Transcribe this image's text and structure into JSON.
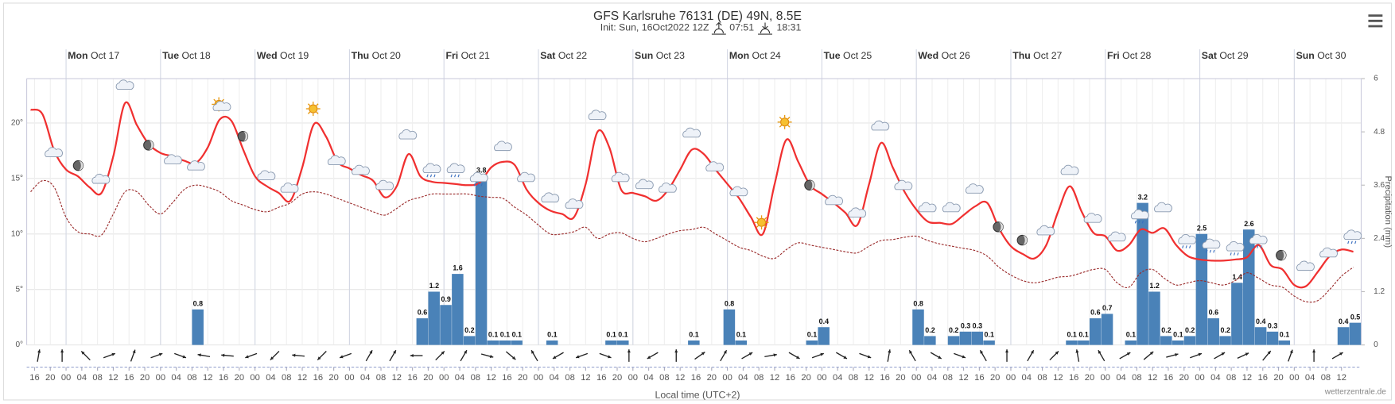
{
  "chart_data": {
    "type": "line",
    "title": "GFS Karlsruhe 76131 (DE) 49N, 8.5E",
    "subtitle": "Init: Sun, 16Oct2022 12Z",
    "sunrise": "07:51",
    "sunset": "18:31",
    "xlabel": "Local time (UTC+2)",
    "y2label": "Precipitation (mm)",
    "credit": "wetterzentrale.de",
    "grid": true,
    "xlim": [
      14,
      353
    ],
    "xticks": [
      {
        "value": 16,
        "label": "16"
      },
      {
        "value": 20,
        "label": "20"
      },
      {
        "value": 24,
        "label": "00"
      },
      {
        "value": 28,
        "label": "04"
      },
      {
        "value": 32,
        "label": "08"
      },
      {
        "value": 36,
        "label": "12"
      },
      {
        "value": 40,
        "label": "16"
      },
      {
        "value": 44,
        "label": "20"
      },
      {
        "value": 48,
        "label": "00"
      },
      {
        "value": 52,
        "label": "04"
      },
      {
        "value": 56,
        "label": "08"
      },
      {
        "value": 60,
        "label": "12"
      },
      {
        "value": 64,
        "label": "16"
      },
      {
        "value": 68,
        "label": "20"
      },
      {
        "value": 72,
        "label": "00"
      },
      {
        "value": 76,
        "label": "04"
      },
      {
        "value": 80,
        "label": "08"
      },
      {
        "value": 84,
        "label": "12"
      },
      {
        "value": 88,
        "label": "16"
      },
      {
        "value": 92,
        "label": "20"
      },
      {
        "value": 96,
        "label": "00"
      },
      {
        "value": 100,
        "label": "04"
      },
      {
        "value": 104,
        "label": "08"
      },
      {
        "value": 108,
        "label": "12"
      },
      {
        "value": 112,
        "label": "16"
      },
      {
        "value": 116,
        "label": "20"
      },
      {
        "value": 120,
        "label": "00"
      },
      {
        "value": 124,
        "label": "04"
      },
      {
        "value": 128,
        "label": "08"
      },
      {
        "value": 132,
        "label": "12"
      },
      {
        "value": 136,
        "label": "16"
      },
      {
        "value": 140,
        "label": "20"
      },
      {
        "value": 144,
        "label": "00"
      },
      {
        "value": 148,
        "label": "04"
      },
      {
        "value": 152,
        "label": "08"
      },
      {
        "value": 156,
        "label": "12"
      },
      {
        "value": 160,
        "label": "16"
      },
      {
        "value": 164,
        "label": "20"
      },
      {
        "value": 168,
        "label": "00"
      },
      {
        "value": 172,
        "label": "04"
      },
      {
        "value": 176,
        "label": "08"
      },
      {
        "value": 180,
        "label": "12"
      },
      {
        "value": 184,
        "label": "16"
      },
      {
        "value": 188,
        "label": "20"
      },
      {
        "value": 192,
        "label": "00"
      },
      {
        "value": 196,
        "label": "04"
      },
      {
        "value": 200,
        "label": "08"
      },
      {
        "value": 204,
        "label": "12"
      },
      {
        "value": 208,
        "label": "16"
      },
      {
        "value": 212,
        "label": "20"
      },
      {
        "value": 216,
        "label": "00"
      },
      {
        "value": 220,
        "label": "04"
      },
      {
        "value": 224,
        "label": "08"
      },
      {
        "value": 228,
        "label": "12"
      },
      {
        "value": 232,
        "label": "16"
      },
      {
        "value": 236,
        "label": "20"
      },
      {
        "value": 240,
        "label": "00"
      },
      {
        "value": 244,
        "label": "04"
      },
      {
        "value": 248,
        "label": "08"
      },
      {
        "value": 252,
        "label": "12"
      },
      {
        "value": 256,
        "label": "16"
      },
      {
        "value": 260,
        "label": "20"
      },
      {
        "value": 264,
        "label": "00"
      },
      {
        "value": 268,
        "label": "04"
      },
      {
        "value": 272,
        "label": "08"
      },
      {
        "value": 276,
        "label": "12"
      },
      {
        "value": 280,
        "label": "16"
      },
      {
        "value": 284,
        "label": "20"
      },
      {
        "value": 288,
        "label": "00"
      },
      {
        "value": 292,
        "label": "04"
      },
      {
        "value": 296,
        "label": "08"
      },
      {
        "value": 300,
        "label": "12"
      },
      {
        "value": 304,
        "label": "16"
      },
      {
        "value": 308,
        "label": "20"
      },
      {
        "value": 312,
        "label": "00"
      },
      {
        "value": 316,
        "label": "04"
      },
      {
        "value": 320,
        "label": "08"
      },
      {
        "value": 324,
        "label": "12"
      },
      {
        "value": 328,
        "label": "16"
      },
      {
        "value": 332,
        "label": "20"
      },
      {
        "value": 336,
        "label": "00"
      },
      {
        "value": 340,
        "label": "04"
      },
      {
        "value": 344,
        "label": "08"
      },
      {
        "value": 348,
        "label": "12"
      }
    ],
    "day_ticks": [
      {
        "value": 24,
        "weekday": "Mon",
        "date": "Oct 17"
      },
      {
        "value": 48,
        "weekday": "Tue",
        "date": "Oct 18"
      },
      {
        "value": 72,
        "weekday": "Wed",
        "date": "Oct 19"
      },
      {
        "value": 96,
        "weekday": "Thu",
        "date": "Oct 20"
      },
      {
        "value": 120,
        "weekday": "Fri",
        "date": "Oct 21"
      },
      {
        "value": 144,
        "weekday": "Sat",
        "date": "Oct 22"
      },
      {
        "value": 168,
        "weekday": "Sun",
        "date": "Oct 23"
      },
      {
        "value": 192,
        "weekday": "Mon",
        "date": "Oct 24"
      },
      {
        "value": 216,
        "weekday": "Tue",
        "date": "Oct 25"
      },
      {
        "value": 240,
        "weekday": "Wed",
        "date": "Oct 26"
      },
      {
        "value": 264,
        "weekday": "Thu",
        "date": "Oct 27"
      },
      {
        "value": 288,
        "weekday": "Fri",
        "date": "Oct 28"
      },
      {
        "value": 312,
        "weekday": "Sat",
        "date": "Oct 29"
      },
      {
        "value": 336,
        "weekday": "Sun",
        "date": "Oct 30"
      }
    ],
    "ylim": [
      0,
      24
    ],
    "yticks": [
      {
        "value": 0,
        "label": "0°"
      },
      {
        "value": 5,
        "label": "5°"
      },
      {
        "value": 10,
        "label": "10°"
      },
      {
        "value": 15,
        "label": "15°"
      },
      {
        "value": 20,
        "label": "20°"
      }
    ],
    "y2lim": [
      0,
      6
    ],
    "y2ticks": [
      0,
      1.2,
      2.4,
      3.6,
      4.8,
      6
    ],
    "x": [
      15,
      18,
      21,
      24,
      27,
      30,
      33,
      36,
      39,
      42,
      45,
      48,
      51,
      54,
      57,
      60,
      63,
      66,
      69,
      72,
      75,
      78,
      81,
      84,
      87,
      90,
      93,
      96,
      99,
      102,
      105,
      108,
      111,
      114,
      117,
      120,
      123,
      126,
      129,
      132,
      135,
      138,
      141,
      144,
      147,
      150,
      153,
      156,
      159,
      162,
      165,
      168,
      171,
      174,
      177,
      180,
      183,
      186,
      189,
      192,
      195,
      198,
      201,
      204,
      207,
      210,
      213,
      216,
      219,
      222,
      225,
      228,
      231,
      234,
      237,
      240,
      243,
      246,
      249,
      252,
      255,
      258,
      261,
      264,
      267,
      270,
      273,
      276,
      279,
      282,
      285,
      288,
      291,
      294,
      297,
      300,
      303,
      306,
      309,
      312,
      315,
      318,
      321,
      324,
      327,
      330,
      333,
      336,
      339,
      342,
      345,
      348,
      351
    ],
    "series": [
      {
        "type": "line",
        "color": "#f03030",
        "dashed": false,
        "values": [
          21.2,
          20.8,
          17.5,
          15.8,
          15.2,
          14.2,
          13.7,
          17,
          21.8,
          19.8,
          18.1,
          17.3,
          17,
          16.6,
          16.4,
          17.8,
          20.3,
          20.2,
          17.6,
          15.2,
          14.3,
          13.7,
          13,
          16,
          19.9,
          18.8,
          16.5,
          15.9,
          15.3,
          14.8,
          13.3,
          14.3,
          17.2,
          15.2,
          14.7,
          14.6,
          14.5,
          14.4,
          14.6,
          16,
          16.5,
          16.2,
          14,
          12.8,
          12.1,
          11.8,
          11.5,
          14.5,
          19.2,
          17.8,
          14,
          13.7,
          13.4,
          13,
          14,
          15.8,
          17.6,
          17.2,
          15.8,
          14.5,
          13.2,
          11.5,
          10,
          14.5,
          18.5,
          16.5,
          14.4,
          13.6,
          12.8,
          11.9,
          10.8,
          14.5,
          18.2,
          16,
          13.8,
          12.2,
          11.1,
          11,
          10.9,
          11.7,
          12.5,
          12.8,
          10.5,
          8.9,
          8.2,
          7.8,
          9,
          12,
          14.3,
          12,
          10.1,
          9.8,
          8.5,
          9,
          10.4,
          10.1,
          10.5,
          9,
          8,
          7.7,
          7.6,
          7.6,
          7.7,
          7.9,
          9,
          7.2,
          6.8,
          5.4,
          5.3,
          6.6,
          8,
          8.6,
          8.4
        ]
      },
      {
        "type": "line",
        "color": "#9a2a2a",
        "dashed": true,
        "values": [
          13.8,
          14.8,
          14.2,
          11.5,
          10.2,
          10,
          9.9,
          11.8,
          13.8,
          13.8,
          12.6,
          11.8,
          12.8,
          14,
          14.4,
          14.2,
          13.8,
          13,
          12.6,
          12.2,
          12,
          12.4,
          12.8,
          13.6,
          13.8,
          13.6,
          13.2,
          12.8,
          12.4,
          12,
          11.7,
          12.3,
          13,
          13.3,
          13.6,
          13.6,
          13.6,
          13.6,
          13.4,
          13.3,
          13.2,
          12.4,
          11.7,
          10.8,
          10,
          10,
          10.2,
          10.6,
          9.6,
          10,
          10.1,
          9.6,
          9.3,
          9.6,
          10,
          10.3,
          10.4,
          10.6,
          10,
          9.4,
          8.8,
          8.5,
          8,
          7.8,
          8.6,
          9.2,
          9,
          8.8,
          8.6,
          8.4,
          8.3,
          8.9,
          9.4,
          9.5,
          9.7,
          9.8,
          9.4,
          9.1,
          8.9,
          8.7,
          8.5,
          8,
          7,
          6.3,
          5.8,
          5.6,
          5.8,
          6.1,
          6.2,
          6.5,
          6.8,
          6.8,
          5.6,
          5.2,
          6.5,
          6.8,
          6,
          5.4,
          5.6,
          5.8,
          5.6,
          5.4,
          5.8,
          6.5,
          6,
          5.4,
          5.2,
          4.4,
          3.9,
          4,
          5,
          6.2,
          7
        ]
      },
      {
        "type": "bar",
        "axis": "y2",
        "color": "#4a82b8",
        "x": [
          56,
          113,
          116,
          119,
          122,
          125,
          128,
          131,
          134,
          137,
          146,
          161,
          164,
          182,
          191,
          194,
          212,
          215,
          239,
          242,
          248,
          251,
          254,
          257,
          278,
          281,
          284,
          287,
          293,
          296,
          299,
          302,
          305,
          308,
          311,
          314,
          317,
          320,
          323,
          326,
          329,
          332,
          347,
          350
        ],
        "values": [
          0.8,
          0.6,
          1.2,
          0.9,
          1.6,
          0.2,
          3.8,
          0.1,
          0.1,
          0.1,
          0.1,
          0.1,
          0.1,
          0.1,
          0.8,
          0.1,
          0.1,
          0.4,
          0.8,
          0.2,
          0.2,
          0.3,
          0.3,
          0.1,
          0.1,
          0.1,
          0.6,
          0.7,
          0.1,
          3.2,
          1.2,
          0.2,
          0.1,
          0.2,
          2.5,
          0.6,
          0.2,
          1.4,
          2.6,
          0.4,
          0.3,
          0.1,
          0.4,
          0.5
        ]
      }
    ]
  }
}
